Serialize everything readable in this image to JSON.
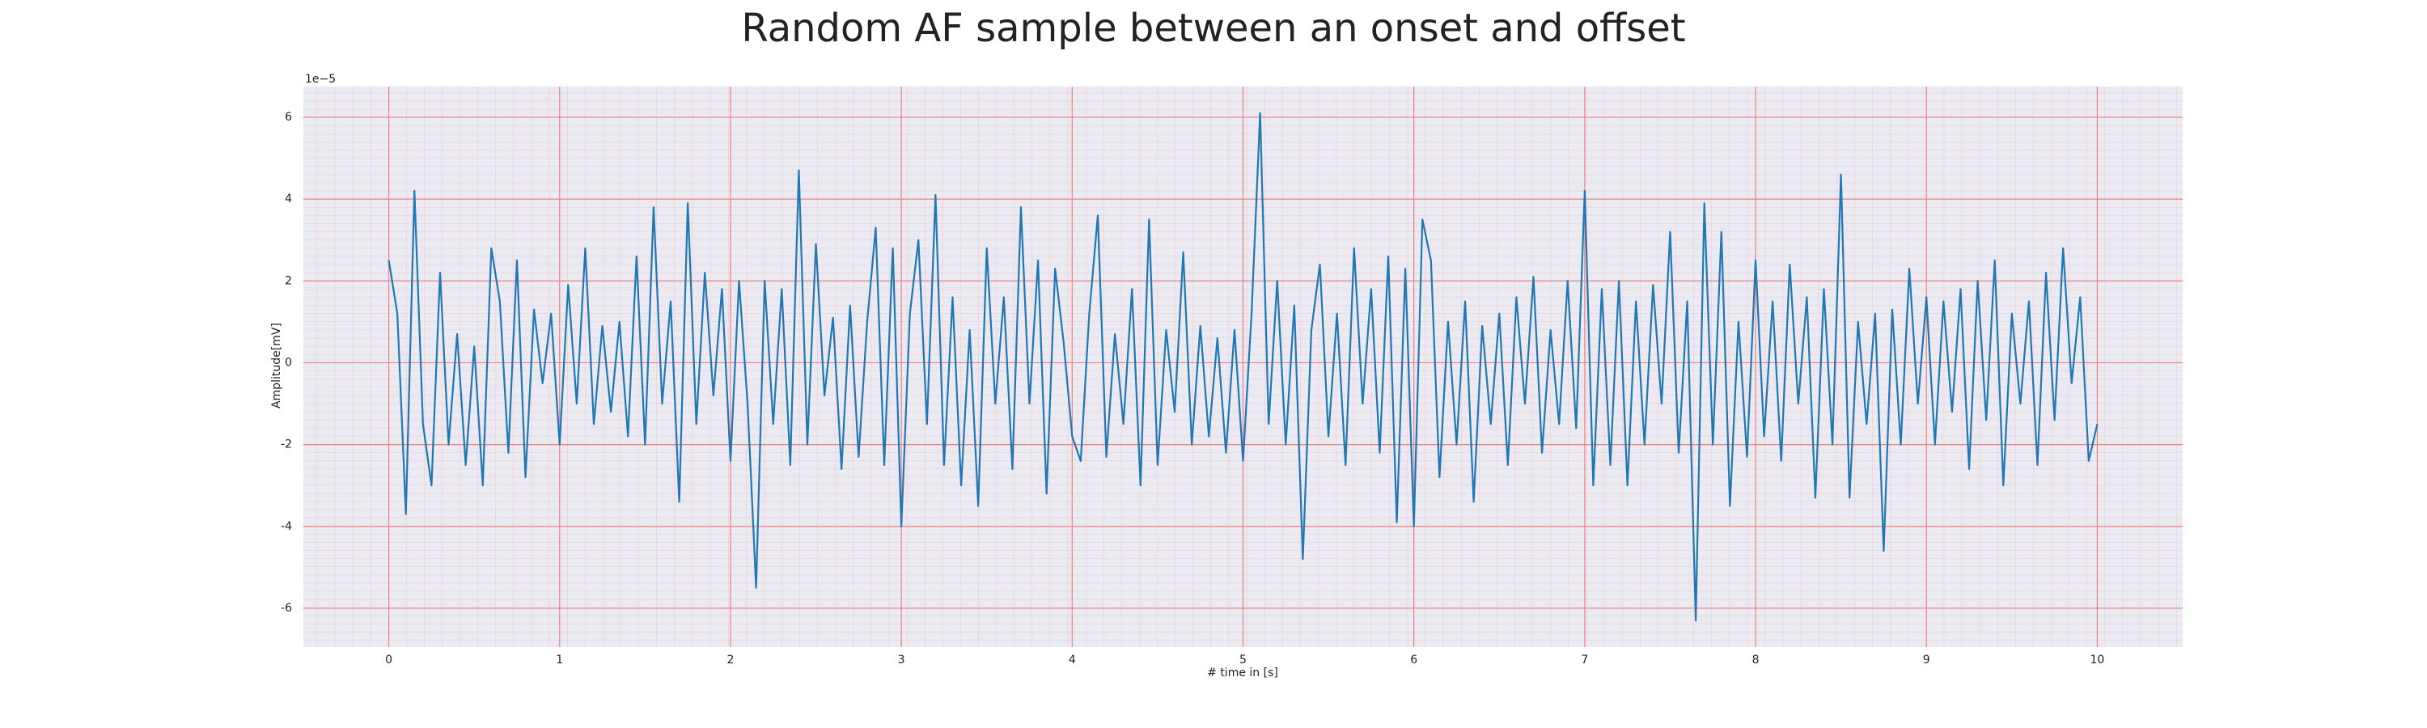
{
  "chart_data": {
    "type": "line",
    "title": "Random AF sample between an onset and offset",
    "xlabel": "# time in [s]",
    "ylabel": "Amplitude[mV]",
    "y_offset_label": "1e−5",
    "x": [
      0,
      0.05,
      0.1,
      0.15,
      0.2,
      0.25,
      0.3,
      0.35,
      0.4,
      0.45,
      0.5,
      0.55,
      0.6,
      0.65,
      0.7,
      0.75,
      0.8,
      0.85,
      0.9,
      0.95,
      1,
      1.05,
      1.1,
      1.15,
      1.2,
      1.25,
      1.3,
      1.35,
      1.4,
      1.45,
      1.5,
      1.55,
      1.6,
      1.65,
      1.7,
      1.75,
      1.8,
      1.85,
      1.9,
      1.95,
      2,
      2.05,
      2.1,
      2.15,
      2.2,
      2.25,
      2.3,
      2.35,
      2.4,
      2.45,
      2.5,
      2.55,
      2.6,
      2.65,
      2.7,
      2.75,
      2.8,
      2.85,
      2.9,
      2.95,
      3,
      3.05,
      3.1,
      3.15,
      3.2,
      3.25,
      3.3,
      3.35,
      3.4,
      3.45,
      3.5,
      3.55,
      3.6,
      3.65,
      3.7,
      3.75,
      3.8,
      3.85,
      3.9,
      3.95,
      4,
      4.05,
      4.1,
      4.15,
      4.2,
      4.25,
      4.3,
      4.35,
      4.4,
      4.45,
      4.5,
      4.55,
      4.6,
      4.65,
      4.7,
      4.75,
      4.8,
      4.85,
      4.9,
      4.95,
      5,
      5.05,
      5.1,
      5.15,
      5.2,
      5.25,
      5.3,
      5.35,
      5.4,
      5.45,
      5.5,
      5.55,
      5.6,
      5.65,
      5.7,
      5.75,
      5.8,
      5.85,
      5.9,
      5.95,
      6,
      6.05,
      6.1,
      6.15,
      6.2,
      6.25,
      6.3,
      6.35,
      6.4,
      6.45,
      6.5,
      6.55,
      6.6,
      6.65,
      6.7,
      6.75,
      6.8,
      6.85,
      6.9,
      6.95,
      7,
      7.05,
      7.1,
      7.15,
      7.2,
      7.25,
      7.3,
      7.35,
      7.4,
      7.45,
      7.5,
      7.55,
      7.6,
      7.65,
      7.7,
      7.75,
      7.8,
      7.85,
      7.9,
      7.95,
      8,
      8.05,
      8.1,
      8.15,
      8.2,
      8.25,
      8.3,
      8.35,
      8.4,
      8.45,
      8.5,
      8.55,
      8.6,
      8.65,
      8.7,
      8.75,
      8.8,
      8.85,
      8.9,
      8.95,
      9,
      9.05,
      9.1,
      9.15,
      9.2,
      9.25,
      9.3,
      9.35,
      9.4,
      9.45,
      9.5,
      9.55,
      9.6,
      9.65,
      9.7,
      9.75,
      9.8,
      9.85,
      9.9,
      9.95,
      10
    ],
    "series": [
      {
        "color": "#1f77b4",
        "values": [
          2.5,
          1.2,
          -3.7,
          4.2,
          -1.5,
          -3.0,
          2.2,
          -2.0,
          0.7,
          -2.5,
          0.4,
          -3.0,
          2.8,
          1.5,
          -2.2,
          2.5,
          -2.8,
          1.3,
          -0.5,
          1.2,
          -2.0,
          1.9,
          -1.0,
          2.8,
          -1.5,
          0.9,
          -1.2,
          1.0,
          -1.8,
          2.6,
          -2.0,
          3.8,
          -1.0,
          1.5,
          -3.4,
          3.9,
          -1.5,
          2.2,
          -0.8,
          1.8,
          -2.4,
          2.0,
          -1.0,
          -5.5,
          2.0,
          -1.5,
          1.8,
          -2.5,
          4.7,
          -2.0,
          2.9,
          -0.8,
          1.1,
          -2.6,
          1.4,
          -2.3,
          1.0,
          3.3,
          -2.5,
          2.8,
          -4.0,
          1.2,
          3.0,
          -1.5,
          4.1,
          -2.5,
          1.6,
          -3.0,
          0.8,
          -3.5,
          2.8,
          -1.0,
          1.6,
          -2.6,
          3.8,
          -1.0,
          2.5,
          -3.2,
          2.3,
          0.5,
          -1.8,
          -2.4,
          1.2,
          3.6,
          -2.3,
          0.7,
          -1.5,
          1.8,
          -3.0,
          3.5,
          -2.5,
          0.8,
          -1.2,
          2.7,
          -2.0,
          0.9,
          -1.8,
          0.6,
          -2.2,
          0.8,
          -2.4,
          1.2,
          6.1,
          -1.5,
          2.0,
          -2.0,
          1.4,
          -4.8,
          0.8,
          2.4,
          -1.8,
          1.2,
          -2.5,
          2.8,
          -1.0,
          1.8,
          -2.2,
          2.6,
          -3.9,
          2.3,
          -4.0,
          3.5,
          2.5,
          -2.8,
          1.0,
          -2.0,
          1.5,
          -3.4,
          0.9,
          -1.5,
          1.2,
          -2.5,
          1.6,
          -1.0,
          2.1,
          -2.2,
          0.8,
          -1.5,
          2.0,
          -1.6,
          4.2,
          -3.0,
          1.8,
          -2.5,
          2.0,
          -3.0,
          1.5,
          -2.0,
          1.9,
          -1.0,
          3.2,
          -2.2,
          1.5,
          -6.3,
          3.9,
          -2.0,
          3.2,
          -3.5,
          1.0,
          -2.3,
          2.5,
          -1.8,
          1.5,
          -2.4,
          2.4,
          -1.0,
          1.6,
          -3.3,
          1.8,
          -2.0,
          4.6,
          -3.3,
          1.0,
          -1.5,
          1.2,
          -4.6,
          1.3,
          -2.0,
          2.3,
          -1.0,
          1.6,
          -2.0,
          1.5,
          -1.2,
          1.8,
          -2.6,
          2.0,
          -1.4,
          2.5,
          -3.0,
          1.2,
          -1.0,
          1.5,
          -2.5,
          2.2,
          -1.4,
          2.8,
          -0.5,
          1.6,
          -2.4,
          -1.5
        ]
      }
    ],
    "xlim": [
      -0.5,
      10.5
    ],
    "xticks": [
      0,
      1,
      2,
      3,
      4,
      5,
      6,
      7,
      8,
      9,
      10
    ],
    "ylim": [
      -6.95,
      6.75
    ],
    "yticks": [
      -6,
      -4,
      -2,
      0,
      2,
      4,
      6
    ],
    "grid": true
  }
}
